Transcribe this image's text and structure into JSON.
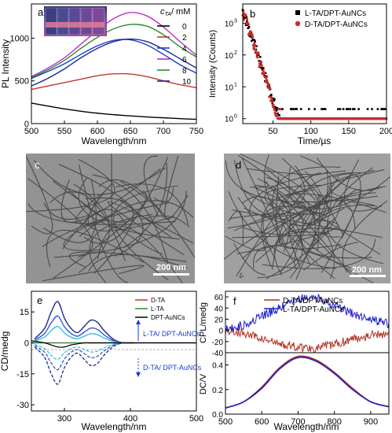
{
  "panels": {
    "a": {
      "letter": "a",
      "xlabel": "Wavelength/nm",
      "ylabel": "PL Intensity",
      "legend_title": "c",
      "legend_title_sub": "TA",
      "legend_title_unit": "/ mM",
      "xlim": [
        500,
        750
      ],
      "ylim": [
        0,
        1400
      ],
      "xticks": [
        "500",
        "550",
        "600",
        "650",
        "700",
        "750"
      ],
      "yticks": [
        "0",
        "500",
        "1000"
      ],
      "inset_photo": "vial-photo-image"
    },
    "b": {
      "letter": "b",
      "xlabel": "Time/µs",
      "ylabel": "Intensity (Counts)",
      "xticks": [
        "50",
        "100",
        "150",
        "200"
      ],
      "yticks": [
        "10",
        "10",
        "10",
        "10"
      ],
      "ytick_exps": [
        "0",
        "1",
        "2",
        "3"
      ]
    },
    "c": {
      "letter": "c",
      "scalebar": "200 nm",
      "image": "tem-micrograph-image"
    },
    "d": {
      "letter": "d",
      "scalebar": "200 nm",
      "image": "tem-micrograph-image"
    },
    "e": {
      "letter": "e",
      "xlabel": "Wavelength/nm",
      "ylabel": "CD/medg",
      "xticks": [
        "300",
        "400",
        "500"
      ],
      "yticks": [
        "-30",
        "-15",
        "0",
        "15"
      ],
      "ann_up": "L-TA/ DPT-AuNCs",
      "ann_down": "D-TA/ DPT-AuNCs"
    },
    "f": {
      "letter": "f",
      "xlabel": "Wavelength/nm",
      "ylabel_top": "CPL/medg",
      "ylabel_bottom": "DC/V",
      "xticks": [
        "500",
        "600",
        "700",
        "800",
        "900"
      ],
      "yticks_top": [
        "-40",
        "-20",
        "0",
        "20",
        "40",
        "60"
      ],
      "yticks_bottom": [
        "0.0",
        "0.2",
        "0.4"
      ]
    }
  },
  "chart_data": [
    {
      "type": "line",
      "panel": "a",
      "xlabel": "Wavelength/nm",
      "ylabel": "PL Intensity",
      "xlim": [
        500,
        750
      ],
      "ylim": [
        0,
        1400
      ],
      "x": [
        500,
        525,
        550,
        575,
        600,
        625,
        650,
        675,
        700,
        725,
        750
      ],
      "series": [
        {
          "name": "0",
          "color": "#000000",
          "values": [
            240,
            205,
            172,
            145,
            122,
            104,
            90,
            78,
            68,
            58,
            50
          ]
        },
        {
          "name": "2",
          "color": "#c0392b",
          "values": [
            400,
            440,
            480,
            520,
            560,
            582,
            580,
            550,
            500,
            455,
            420
          ]
        },
        {
          "name": "4",
          "color": "#1a3fd0",
          "values": [
            530,
            610,
            700,
            810,
            910,
            975,
            980,
            920,
            810,
            690,
            590
          ]
        },
        {
          "name": "6",
          "color": "#c02ad0",
          "values": [
            550,
            650,
            770,
            930,
            1090,
            1230,
            1300,
            1260,
            1130,
            960,
            800
          ]
        },
        {
          "name": "8",
          "color": "#2e8b2e",
          "values": [
            540,
            630,
            740,
            880,
            1010,
            1110,
            1160,
            1140,
            1040,
            900,
            780
          ]
        },
        {
          "name": "10",
          "color": "#1c2a8c",
          "values": [
            440,
            530,
            640,
            770,
            880,
            960,
            990,
            960,
            870,
            760,
            650
          ]
        }
      ]
    },
    {
      "type": "scatter",
      "panel": "b",
      "xlabel": "Time/µs",
      "ylabel": "Intensity (Counts)",
      "xlim": [
        10,
        200
      ],
      "ylim": [
        0.7,
        4000
      ],
      "yscale": "log",
      "series": [
        {
          "name": "L-TA/DPT-AuNCs",
          "color": "#000000",
          "tau": 6.2
        },
        {
          "name": "D-TA/DPT-AuNCs",
          "color": "#cc2b2b",
          "tau": 6.0
        }
      ]
    },
    {
      "type": "line",
      "panel": "e",
      "xlabel": "Wavelength/nm",
      "ylabel": "CD/medg",
      "xlim": [
        250,
        500
      ],
      "ylim": [
        -33,
        25
      ],
      "x": [
        250,
        270,
        280,
        290,
        300,
        310,
        320,
        330,
        340,
        350,
        360,
        380,
        400,
        450,
        500
      ],
      "series": [
        {
          "name": "D-TA",
          "color": "#c0392b",
          "values": [
            0,
            0,
            0,
            0,
            0,
            0,
            0,
            0,
            0,
            0,
            0,
            0,
            0,
            0,
            0
          ]
        },
        {
          "name": "L-TA",
          "color": "#2e8b2e",
          "values": [
            0,
            0,
            0,
            0,
            0,
            0,
            0,
            0,
            0,
            0,
            0,
            0,
            0,
            0,
            0
          ]
        },
        {
          "name": "DPT-AuNCs",
          "color": "#000000",
          "values": [
            1,
            0,
            -1,
            -2,
            -2,
            -1,
            -0.5,
            0,
            0,
            0,
            0,
            0,
            0,
            0,
            0
          ]
        }
      ]
    },
    {
      "type": "line",
      "panel": "f",
      "xlabel": "Wavelength/nm",
      "ylabel": "CPL/medg",
      "xlim": [
        500,
        950
      ],
      "ylim": [
        -40,
        70
      ],
      "x": [
        500,
        550,
        600,
        650,
        700,
        750,
        800,
        850,
        900,
        950
      ],
      "series": [
        {
          "name": "D-TA/DPTAuNCs",
          "color": "#b03020",
          "values": [
            0,
            -5,
            -15,
            -25,
            -30,
            -32,
            -25,
            -15,
            -8,
            -5
          ]
        },
        {
          "name": "L-TA/DPT-AuNCs",
          "color": "#2020c8",
          "values": [
            0,
            10,
            25,
            40,
            55,
            60,
            45,
            30,
            20,
            12
          ]
        }
      ]
    },
    {
      "type": "line",
      "panel": "f-bottom",
      "xlabel": "Wavelength/nm",
      "ylabel": "DC/V",
      "xlim": [
        500,
        950
      ],
      "ylim": [
        0,
        0.5
      ],
      "x": [
        500,
        550,
        600,
        650,
        700,
        750,
        800,
        850,
        900,
        950
      ],
      "series": [
        {
          "name": "D-TA/DPTAuNCs",
          "color": "#b03020",
          "values": [
            0.05,
            0.1,
            0.22,
            0.38,
            0.47,
            0.44,
            0.34,
            0.21,
            0.1,
            0.06
          ]
        },
        {
          "name": "L-TA/DPT-AuNCs",
          "color": "#2020c8",
          "values": [
            0.05,
            0.1,
            0.21,
            0.37,
            0.46,
            0.43,
            0.33,
            0.2,
            0.1,
            0.06
          ]
        }
      ]
    }
  ]
}
